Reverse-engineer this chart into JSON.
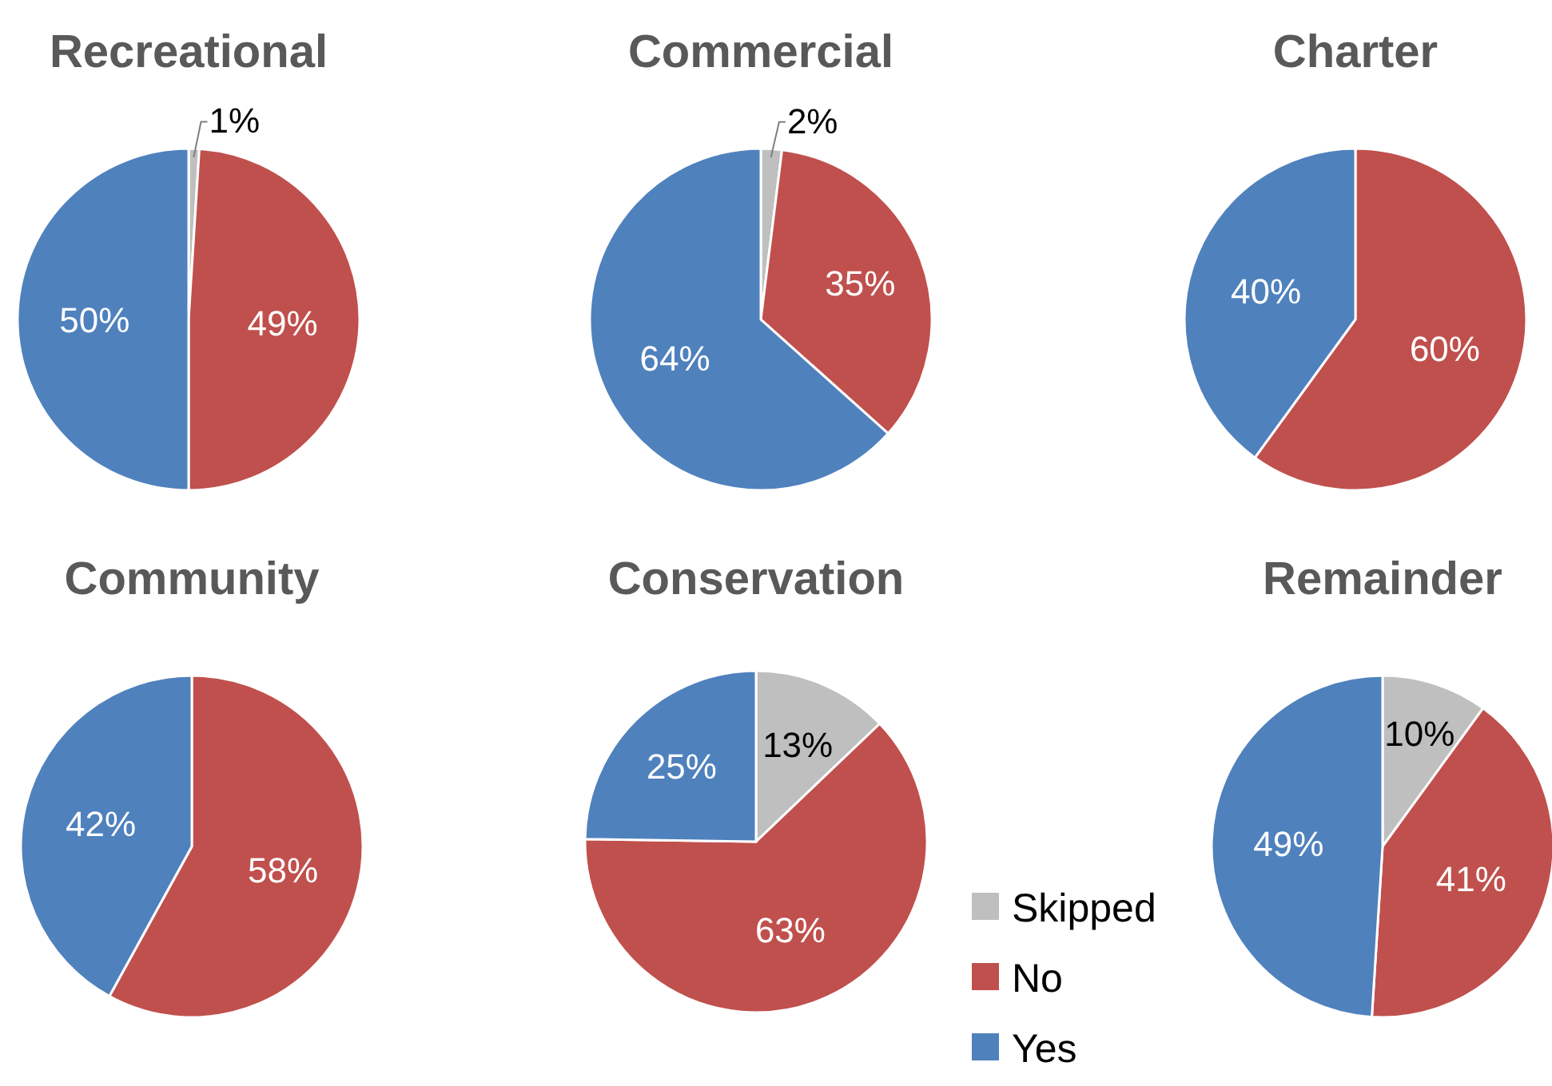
{
  "chart_data": [
    {
      "type": "pie",
      "title": "Recreational",
      "categories": [
        null,
        null,
        null
      ],
      "values": [
        1,
        49,
        50
      ],
      "colors": [
        "#bfbfbf",
        "#c0504d",
        "#4f81bd"
      ],
      "value_labels": [
        "1%",
        "49%",
        "50%"
      ]
    },
    {
      "type": "pie",
      "title": "Commercial",
      "categories": [
        null,
        null,
        null
      ],
      "values": [
        2,
        35,
        64
      ],
      "colors": [
        "#bfbfbf",
        "#c0504d",
        "#4f81bd"
      ],
      "value_labels": [
        "2%",
        "35%",
        "64%"
      ]
    },
    {
      "type": "pie",
      "title": "Charter",
      "categories": [
        null,
        null
      ],
      "values": [
        60,
        40
      ],
      "colors": [
        "#c0504d",
        "#4f81bd"
      ],
      "value_labels": [
        "60%",
        "40%"
      ]
    },
    {
      "type": "pie",
      "title": "Community",
      "categories": [
        null,
        null
      ],
      "values": [
        58,
        42
      ],
      "colors": [
        "#c0504d",
        "#4f81bd"
      ],
      "value_labels": [
        "58%",
        "42%"
      ]
    },
    {
      "type": "pie",
      "title": "Conservation",
      "categories": [
        "Skipped",
        "No",
        "Yes"
      ],
      "values": [
        13,
        63,
        25
      ],
      "colors": [
        "#bfbfbf",
        "#c0504d",
        "#4f81bd"
      ],
      "value_labels": [
        "13%",
        "63%",
        "25%"
      ],
      "legend": "bottom right"
    },
    {
      "type": "pie",
      "title": "Remainder",
      "categories": [
        null,
        null,
        null
      ],
      "values": [
        10,
        41,
        49
      ],
      "colors": [
        "#bfbfbf",
        "#c0504d",
        "#4f81bd"
      ],
      "value_labels": [
        "10%",
        "41%",
        "49%"
      ]
    }
  ]
}
